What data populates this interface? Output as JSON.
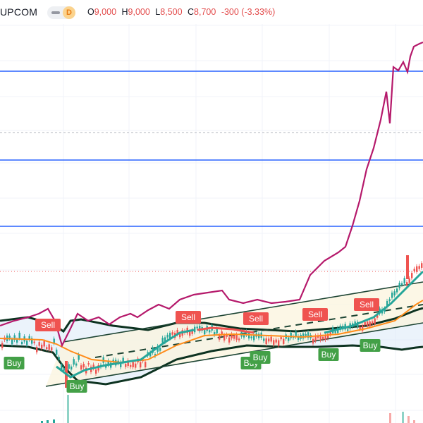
{
  "header": {
    "symbol": "UPCOM",
    "interval_badge": "D",
    "ohlc": [
      {
        "key": "O",
        "value": "9,000"
      },
      {
        "key": "H",
        "value": "9,000"
      },
      {
        "key": "L",
        "value": "8,500"
      },
      {
        "key": "C",
        "value": "8,700"
      }
    ],
    "change": "-300 (-3.33%)"
  },
  "colors": {
    "up": "#26a69a",
    "down": "#ef5350",
    "channel_line": "#1b4332",
    "bollinger": "#0d3321",
    "oscillator": "#b5196b",
    "horizontal_levels": "#2962ff",
    "ema": "#ff8c1a",
    "buy_label": "#43a047",
    "sell_label": "#ef5350"
  },
  "signals": [
    {
      "text": "Sell",
      "type": "sell"
    },
    {
      "text": "Sell",
      "type": "sell"
    },
    {
      "text": "Sell",
      "type": "sell"
    },
    {
      "text": "Sell",
      "type": "sell"
    },
    {
      "text": "Sell",
      "type": "sell"
    },
    {
      "text": "Buy",
      "type": "buy"
    },
    {
      "text": "Buy",
      "type": "buy"
    },
    {
      "text": "Buy",
      "type": "buy"
    },
    {
      "text": "Buy",
      "type": "buy"
    },
    {
      "text": "Buy",
      "type": "buy"
    },
    {
      "text": "Buy",
      "type": "buy"
    }
  ],
  "icons": {
    "toggle": "toggle-icon"
  }
}
